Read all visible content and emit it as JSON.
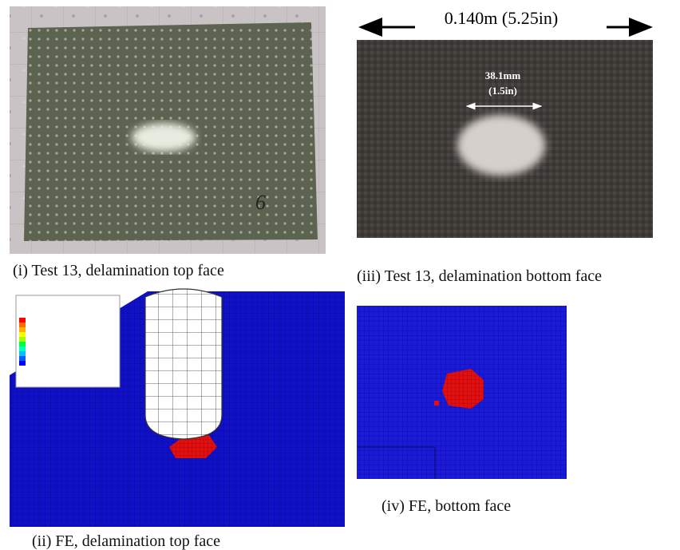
{
  "panels": [
    {
      "caption": "(i) Test 13, delamination top face",
      "annotations": [
        "6"
      ]
    },
    {
      "caption": "(iii) Test 13, delamination bottom face",
      "annotations": [
        "0.140m  (5.25in)",
        "38.1mm",
        "(1.5in)"
      ]
    },
    {
      "caption": "(ii) FE, delamination top face"
    },
    {
      "caption": "(iv) FE, bottom face"
    }
  ]
}
